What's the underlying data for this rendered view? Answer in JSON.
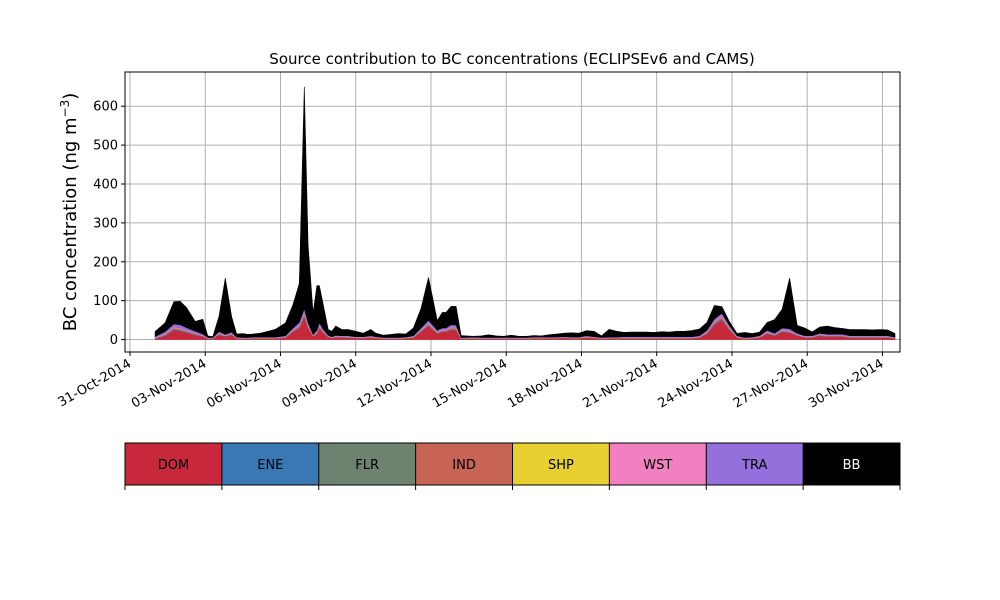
{
  "chart_data": {
    "type": "area",
    "stacked": true,
    "title": "Source contribution to BC concentrations (ECLIPSEv6 and CAMS)",
    "ylabel_text": "BC concentration (ng m",
    "ylabel_superscript": "−3",
    "ylabel_close": ")",
    "xlabel": "",
    "xlim": [
      -0.2,
      30.7
    ],
    "ylim": [
      -32,
      688
    ],
    "yticks": [
      0,
      100,
      200,
      300,
      400,
      500,
      600
    ],
    "xticks": [
      0,
      3,
      6,
      9,
      12,
      15,
      18,
      21,
      24,
      27,
      30
    ],
    "xtick_labels": [
      "31-Oct-2014",
      "03-Nov-2014",
      "06-Nov-2014",
      "09-Nov-2014",
      "12-Nov-2014",
      "15-Nov-2014",
      "18-Nov-2014",
      "21-Nov-2014",
      "24-Nov-2014",
      "27-Nov-2014",
      "30-Nov-2014"
    ],
    "grid": true,
    "x": [
      1.0,
      1.4,
      1.75,
      2.0,
      2.25,
      2.6,
      2.9,
      3.1,
      3.3,
      3.55,
      3.8,
      4.05,
      4.25,
      4.5,
      4.7,
      4.9,
      5.2,
      5.5,
      5.8,
      6.2,
      6.5,
      6.75,
      6.95,
      7.1,
      7.3,
      7.45,
      7.55,
      7.7,
      7.9,
      8.05,
      8.2,
      8.45,
      8.7,
      9.0,
      9.3,
      9.6,
      9.8,
      10.1,
      10.4,
      10.7,
      11.0,
      11.3,
      11.6,
      11.9,
      12.25,
      12.45,
      12.6,
      12.8,
      13.0,
      13.2,
      13.4,
      13.7,
      14.0,
      14.3,
      14.6,
      14.9,
      15.2,
      15.5,
      15.8,
      16.1,
      16.4,
      16.7,
      17.0,
      17.3,
      17.6,
      17.9,
      18.2,
      18.5,
      18.8,
      19.1,
      19.4,
      19.7,
      20.0,
      20.3,
      20.6,
      20.9,
      21.2,
      21.5,
      21.8,
      22.1,
      22.4,
      22.7,
      23.0,
      23.3,
      23.6,
      23.9,
      24.2,
      24.5,
      24.8,
      25.1,
      25.4,
      25.7,
      26.0,
      26.3,
      26.6,
      26.9,
      27.2,
      27.5,
      27.8,
      28.1,
      28.4,
      28.7,
      29.0,
      29.3,
      29.6,
      29.9,
      30.2,
      30.5
    ],
    "series": [
      {
        "name": "DOM",
        "color": "#c8283c",
        "values": [
          2,
          10,
          25,
          22,
          18,
          12,
          8,
          2,
          2,
          12,
          8,
          12,
          3,
          2,
          2,
          3,
          3,
          3,
          3,
          5,
          20,
          30,
          58,
          30,
          8,
          15,
          30,
          18,
          6,
          4,
          6,
          5,
          5,
          4,
          4,
          5,
          4,
          2,
          2,
          2,
          3,
          5,
          20,
          35,
          15,
          20,
          20,
          25,
          24,
          2,
          2,
          3,
          2,
          2,
          2,
          2,
          2,
          2,
          2,
          3,
          3,
          3,
          3,
          4,
          3,
          3,
          5,
          4,
          2,
          3,
          3,
          3,
          3,
          3,
          3,
          3,
          3,
          3,
          3,
          3,
          3,
          5,
          15,
          38,
          50,
          25,
          5,
          2,
          3,
          5,
          15,
          10,
          20,
          18,
          10,
          5,
          5,
          10,
          8,
          8,
          8,
          5,
          5,
          5,
          5,
          5,
          5,
          3
        ]
      },
      {
        "name": "ENE",
        "color": "#3a78b4",
        "values": [
          0.5,
          1,
          1.5,
          1.5,
          1.5,
          1,
          1,
          0.5,
          0.5,
          1,
          1,
          1,
          0.5,
          0.5,
          0.5,
          0.5,
          0.5,
          0.5,
          0.5,
          0.5,
          1,
          1.5,
          3,
          1.5,
          0.5,
          1,
          1.5,
          1,
          0.5,
          0.5,
          0.5,
          0.5,
          0.5,
          0.5,
          0.5,
          0.5,
          0.5,
          0.5,
          0.5,
          0.5,
          0.5,
          0.5,
          1,
          2,
          1,
          1,
          1,
          1.5,
          1.5,
          0.5,
          0.5,
          0.5,
          0.5,
          0.5,
          0.5,
          0.5,
          0.5,
          0.5,
          0.5,
          0.5,
          0.5,
          0.5,
          0.5,
          0.5,
          0.5,
          0.5,
          0.5,
          0.5,
          0.5,
          0.5,
          0.5,
          0.5,
          0.5,
          0.5,
          0.5,
          0.5,
          0.5,
          0.5,
          0.5,
          0.5,
          0.5,
          0.5,
          1,
          2,
          2.5,
          1.5,
          0.5,
          0.5,
          0.5,
          0.5,
          1,
          1,
          1,
          1,
          1,
          0.5,
          0.5,
          1,
          0.5,
          0.5,
          0.5,
          0.5,
          0.5,
          0.5,
          0.5,
          0.5,
          0.5,
          0.5
        ]
      },
      {
        "name": "FLR",
        "color": "#6e8270",
        "values": [
          0.5,
          0.5,
          1,
          1,
          1,
          0.5,
          0.5,
          0.5,
          0.5,
          0.5,
          0.5,
          0.5,
          0.5,
          0.5,
          0.5,
          0.5,
          0.5,
          0.5,
          0.5,
          0.5,
          0.5,
          1,
          1.5,
          1,
          0.5,
          0.5,
          1,
          0.5,
          0.5,
          0.5,
          0.5,
          0.5,
          0.5,
          0.5,
          0.5,
          0.5,
          0.5,
          0.5,
          0.5,
          0.5,
          0.5,
          0.5,
          0.5,
          1,
          0.5,
          0.5,
          0.5,
          1,
          1,
          0.5,
          0.5,
          0.5,
          0.5,
          0.5,
          0.5,
          0.5,
          0.5,
          0.5,
          0.5,
          0.5,
          0.5,
          0.5,
          0.5,
          0.5,
          0.5,
          0.5,
          0.5,
          0.5,
          0.5,
          0.5,
          0.5,
          0.5,
          0.5,
          0.5,
          0.5,
          0.5,
          0.5,
          0.5,
          0.5,
          0.5,
          0.5,
          0.5,
          0.5,
          1,
          1,
          0.5,
          0.5,
          0.5,
          0.5,
          0.5,
          0.5,
          0.5,
          0.5,
          0.5,
          0.5,
          0.5,
          0.5,
          0.5,
          0.5,
          0.5,
          0.5,
          0.5,
          0.5,
          0.5,
          0.5,
          0.5,
          0.5,
          0.5
        ]
      },
      {
        "name": "IND",
        "color": "#c86456",
        "values": [
          1,
          2,
          3,
          3,
          2,
          2,
          1,
          0.5,
          0.5,
          2,
          1,
          1.5,
          0.5,
          0.5,
          0.5,
          0.5,
          0.5,
          0.5,
          0.5,
          1,
          2,
          3,
          5,
          3,
          1,
          2,
          3,
          2,
          1,
          0.5,
          1,
          1,
          1,
          0.5,
          0.5,
          1,
          0.5,
          0.5,
          0.5,
          0.5,
          0.5,
          1,
          2,
          3,
          2,
          2,
          2,
          3,
          3,
          0.5,
          0.5,
          0.5,
          0.5,
          0.5,
          0.5,
          0.5,
          0.5,
          0.5,
          0.5,
          0.5,
          0.5,
          0.5,
          0.5,
          0.5,
          0.5,
          0.5,
          1,
          0.5,
          0.5,
          0.5,
          0.5,
          0.5,
          0.5,
          0.5,
          0.5,
          0.5,
          0.5,
          0.5,
          0.5,
          0.5,
          0.5,
          1,
          2,
          4,
          5,
          3,
          1,
          0.5,
          0.5,
          1,
          2,
          1,
          2,
          2,
          1,
          1,
          1,
          1,
          1,
          1,
          1,
          1,
          1,
          1,
          1,
          1,
          1,
          0.5
        ]
      },
      {
        "name": "SHP",
        "color": "#e8d030",
        "values": [
          0.3,
          0.3,
          0.3,
          0.3,
          0.3,
          0.3,
          0.3,
          0.3,
          0.3,
          0.3,
          0.3,
          0.3,
          0.3,
          0.3,
          0.3,
          0.3,
          0.3,
          0.3,
          0.3,
          0.3,
          0.3,
          0.3,
          0.3,
          0.3,
          0.3,
          0.3,
          0.3,
          0.3,
          0.3,
          0.3,
          0.3,
          0.3,
          0.3,
          0.3,
          0.3,
          0.3,
          0.3,
          0.3,
          0.3,
          0.3,
          0.3,
          0.3,
          0.3,
          0.3,
          0.3,
          0.3,
          0.3,
          0.3,
          0.3,
          0.3,
          0.3,
          0.3,
          0.3,
          0.3,
          0.3,
          0.3,
          0.3,
          0.3,
          0.3,
          0.3,
          0.3,
          0.3,
          0.3,
          0.3,
          0.3,
          0.3,
          0.3,
          0.3,
          0.3,
          0.3,
          0.3,
          0.3,
          0.3,
          0.3,
          0.3,
          0.3,
          0.3,
          0.3,
          0.3,
          0.3,
          0.3,
          0.3,
          0.3,
          0.3,
          0.3,
          0.3,
          0.3,
          0.3,
          0.3,
          0.3,
          0.3,
          0.3,
          0.3,
          0.3,
          0.3,
          0.3,
          0.3,
          0.3,
          0.3,
          0.3,
          0.3,
          0.3,
          0.3,
          0.3,
          0.3,
          0.3,
          0.3,
          0.3
        ]
      },
      {
        "name": "WST",
        "color": "#f080c0",
        "values": [
          0.5,
          1,
          1.5,
          1.5,
          1,
          1,
          0.5,
          0.5,
          0.5,
          1,
          0.5,
          1,
          0.5,
          0.5,
          0.5,
          0.5,
          0.5,
          0.5,
          0.5,
          0.5,
          1,
          1.5,
          2,
          1.5,
          0.5,
          1,
          1.5,
          1,
          0.5,
          0.5,
          0.5,
          0.5,
          0.5,
          0.5,
          0.5,
          0.5,
          0.5,
          0.5,
          0.5,
          0.5,
          0.5,
          0.5,
          1,
          1.5,
          1,
          1,
          1,
          1.5,
          1.5,
          0.5,
          0.5,
          0.5,
          0.5,
          0.5,
          0.5,
          0.5,
          0.5,
          0.5,
          0.5,
          0.5,
          0.5,
          0.5,
          0.5,
          0.5,
          0.5,
          0.5,
          0.5,
          0.5,
          0.5,
          0.5,
          0.5,
          0.5,
          0.5,
          0.5,
          0.5,
          0.5,
          0.5,
          0.5,
          0.5,
          0.5,
          0.5,
          0.5,
          1,
          1.5,
          2,
          1,
          0.5,
          0.5,
          0.5,
          0.5,
          1,
          0.5,
          1,
          1,
          0.5,
          0.5,
          0.5,
          0.5,
          0.5,
          0.5,
          0.5,
          0.5,
          0.5,
          0.5,
          0.5,
          0.5,
          0.5,
          0.5
        ]
      },
      {
        "name": "TRA",
        "color": "#9370dc",
        "values": [
          3,
          6,
          8,
          9,
          7,
          5,
          3,
          1,
          1,
          4,
          2,
          3,
          1,
          1,
          1,
          1,
          1,
          1,
          1,
          2,
          5,
          7,
          10,
          6,
          2,
          4,
          6,
          4,
          2,
          1,
          2,
          2,
          2,
          1,
          1,
          2,
          1,
          1,
          1,
          1,
          1,
          2,
          5,
          7,
          4,
          5,
          5,
          6,
          6,
          1,
          1,
          1,
          1,
          1,
          1,
          1,
          1,
          1,
          1,
          1,
          1,
          1,
          1,
          1,
          1,
          1,
          2,
          1,
          1,
          1,
          1,
          2,
          2,
          2,
          2,
          2,
          2,
          2,
          2,
          2,
          2,
          2,
          4,
          6,
          7,
          5,
          2,
          1,
          1,
          2,
          4,
          3,
          5,
          5,
          3,
          2,
          2,
          3,
          3,
          3,
          3,
          2,
          2,
          2,
          2,
          2,
          2,
          1
        ]
      },
      {
        "name": "BB",
        "color": "#000000",
        "values": [
          13,
          22,
          57,
          60,
          52,
          25,
          38,
          4,
          2,
          40,
          145,
          40,
          8,
          10,
          8,
          8,
          10,
          15,
          20,
          33,
          60,
          100,
          570,
          200,
          55,
          115,
          95,
          65,
          15,
          14,
          24,
          16,
          16,
          14,
          9,
          16,
          9,
          6,
          8,
          10,
          8,
          20,
          50,
          110,
          25,
          40,
          40,
          47,
          48,
          5,
          4,
          2,
          4,
          7,
          4,
          3,
          6,
          3,
          3,
          4,
          3,
          6,
          8,
          9,
          11,
          10,
          13,
          14,
          4,
          20,
          15,
          11,
          12,
          12,
          12,
          11,
          13,
          12,
          14,
          14,
          16,
          17,
          20,
          35,
          17,
          10,
          6,
          13,
          9,
          9,
          20,
          35,
          48,
          130,
          20,
          20,
          10,
          16,
          21,
          17,
          15,
          16,
          16,
          16,
          15,
          16,
          15,
          9
        ]
      }
    ]
  },
  "legend": [
    {
      "name": "DOM",
      "color": "#c8283c",
      "text_color": "#000000"
    },
    {
      "name": "ENE",
      "color": "#3a78b4",
      "text_color": "#000000"
    },
    {
      "name": "FLR",
      "color": "#6e8270",
      "text_color": "#000000"
    },
    {
      "name": "IND",
      "color": "#c86456",
      "text_color": "#000000"
    },
    {
      "name": "SHP",
      "color": "#e8d030",
      "text_color": "#000000"
    },
    {
      "name": "WST",
      "color": "#f080c0",
      "text_color": "#000000"
    },
    {
      "name": "TRA",
      "color": "#9370dc",
      "text_color": "#000000"
    },
    {
      "name": "BB",
      "color": "#000000",
      "text_color": "#ffffff"
    }
  ]
}
